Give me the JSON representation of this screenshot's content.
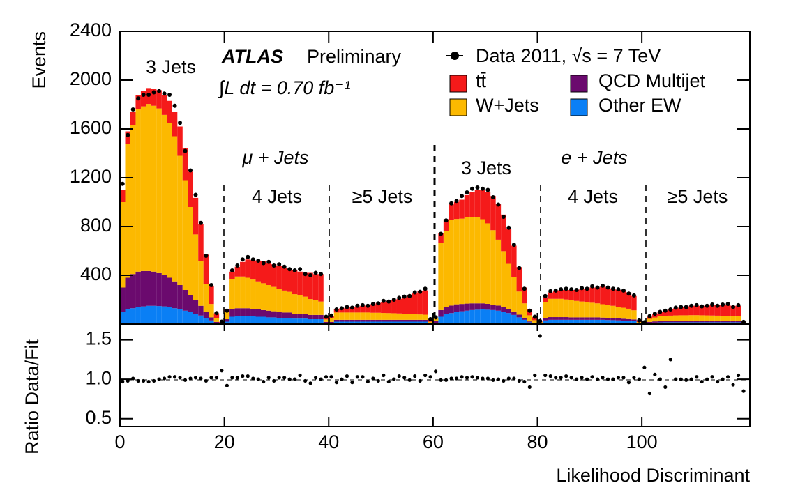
{
  "chart_data": [
    {
      "type": "stacked_histogram",
      "ylabel": "Events",
      "bins": [
        0,
        1,
        2,
        3,
        4,
        5,
        6,
        7,
        8,
        9,
        10,
        11,
        12,
        13,
        14,
        15,
        16,
        17,
        18,
        19,
        20,
        21,
        22,
        23,
        24,
        25,
        26,
        27,
        28,
        29,
        30,
        31,
        32,
        33,
        34,
        35,
        36,
        37,
        38,
        39,
        40,
        41,
        42,
        43,
        44,
        45,
        46,
        47,
        48,
        49,
        50,
        51,
        52,
        53,
        54,
        55,
        56,
        57,
        58,
        59,
        60,
        61,
        62,
        63,
        64,
        65,
        66,
        67,
        68,
        69,
        70,
        71,
        72,
        73,
        74,
        75,
        76,
        77,
        78,
        79,
        80,
        81,
        82,
        83,
        84,
        85,
        86,
        87,
        88,
        89,
        90,
        91,
        92,
        93,
        94,
        95,
        96,
        97,
        98,
        99,
        100,
        101,
        102,
        103,
        104,
        105,
        106,
        107,
        108,
        109,
        110,
        111,
        112,
        113,
        114,
        115,
        116,
        117,
        118,
        119,
        120
      ],
      "ylim": [
        0,
        2400
      ],
      "yticks": [
        400,
        800,
        1200,
        1600,
        2000,
        2400
      ],
      "annotations": [
        "3 Jets",
        "μ + Jets",
        "4 Jets",
        "≥5 Jets",
        "3 Jets",
        "e + Jets",
        "4 Jets",
        "≥5 Jets"
      ],
      "experiment": "ATLAS",
      "status": "Preliminary",
      "luminosity": "∫L dt = 0.70 fb⁻¹",
      "series": [
        {
          "name": "Other EW",
          "color": "#0a7ff5",
          "values": [
            100,
            120,
            130,
            140,
            145,
            150,
            150,
            148,
            145,
            140,
            130,
            120,
            110,
            100,
            85,
            70,
            50,
            30,
            10,
            3,
            20,
            60,
            65,
            65,
            65,
            65,
            60,
            60,
            55,
            55,
            50,
            50,
            50,
            45,
            45,
            45,
            40,
            40,
            40,
            10,
            10,
            20,
            20,
            20,
            20,
            20,
            20,
            20,
            20,
            20,
            20,
            20,
            20,
            20,
            20,
            20,
            20,
            20,
            20,
            5,
            10,
            60,
            80,
            90,
            100,
            105,
            110,
            115,
            118,
            120,
            118,
            115,
            110,
            100,
            90,
            75,
            55,
            35,
            15,
            8,
            3,
            30,
            35,
            35,
            35,
            35,
            35,
            35,
            35,
            35,
            35,
            35,
            35,
            33,
            32,
            30,
            28,
            26,
            24,
            4,
            3,
            10,
            12,
            14,
            15,
            15,
            15,
            15,
            15,
            15,
            15,
            15,
            15,
            15,
            15,
            15,
            15,
            15,
            15,
            3
          ]
        },
        {
          "name": "QCD Multijet",
          "color": "#6b0a6e",
          "values": [
            200,
            260,
            280,
            290,
            290,
            285,
            280,
            270,
            260,
            240,
            220,
            200,
            170,
            140,
            110,
            80,
            50,
            25,
            8,
            2,
            20,
            60,
            65,
            65,
            65,
            60,
            60,
            55,
            55,
            50,
            50,
            45,
            45,
            40,
            40,
            40,
            35,
            35,
            35,
            8,
            8,
            15,
            15,
            15,
            15,
            15,
            15,
            15,
            15,
            15,
            15,
            15,
            15,
            15,
            15,
            15,
            15,
            15,
            15,
            4,
            15,
            55,
            60,
            62,
            62,
            60,
            58,
            55,
            52,
            50,
            48,
            45,
            42,
            38,
            34,
            28,
            22,
            15,
            7,
            4,
            3,
            20,
            22,
            22,
            22,
            22,
            20,
            20,
            20,
            20,
            20,
            20,
            18,
            18,
            18,
            16,
            16,
            15,
            14,
            3,
            3,
            8,
            10,
            11,
            12,
            12,
            12,
            12,
            12,
            12,
            12,
            12,
            12,
            12,
            12,
            12,
            12,
            12,
            12,
            3
          ]
        },
        {
          "name": "W+Jets",
          "color": "#fcb900",
          "values": [
            700,
            1100,
            1220,
            1330,
            1350,
            1370,
            1360,
            1350,
            1310,
            1270,
            1190,
            1060,
            900,
            720,
            540,
            370,
            230,
            110,
            30,
            5,
            60,
            250,
            260,
            260,
            250,
            240,
            230,
            220,
            210,
            200,
            190,
            180,
            170,
            160,
            150,
            140,
            130,
            120,
            110,
            20,
            30,
            60,
            60,
            60,
            60,
            60,
            60,
            60,
            58,
            58,
            56,
            55,
            54,
            52,
            50,
            48,
            46,
            44,
            42,
            10,
            20,
            550,
            620,
            700,
            700,
            700,
            710,
            710,
            710,
            690,
            660,
            610,
            540,
            460,
            370,
            280,
            190,
            120,
            50,
            20,
            10,
            130,
            150,
            150,
            150,
            145,
            140,
            135,
            130,
            125,
            120,
            115,
            110,
            105,
            100,
            95,
            90,
            85,
            75,
            10,
            8,
            25,
            32,
            38,
            40,
            42,
            44,
            45,
            45,
            46,
            46,
            45,
            44,
            43,
            42,
            41,
            40,
            38,
            36,
            6
          ]
        },
        {
          "name": "tt̄",
          "color": "#f51a1a",
          "values": [
            100,
            100,
            110,
            120,
            125,
            130,
            140,
            150,
            160,
            180,
            200,
            240,
            260,
            290,
            300,
            300,
            240,
            150,
            40,
            8,
            20,
            60,
            80,
            120,
            150,
            160,
            170,
            180,
            180,
            185,
            190,
            185,
            185,
            195,
            195,
            195,
            215,
            215,
            225,
            20,
            20,
            30,
            35,
            40,
            45,
            50,
            55,
            60,
            70,
            80,
            90,
            100,
            110,
            120,
            135,
            150,
            170,
            190,
            200,
            20,
            5,
            80,
            100,
            130,
            140,
            155,
            180,
            200,
            220,
            240,
            260,
            280,
            290,
            300,
            290,
            260,
            200,
            130,
            50,
            25,
            4,
            40,
            53,
            63,
            73,
            78,
            85,
            90,
            105,
            110,
            125,
            130,
            147,
            144,
            140,
            139,
            136,
            134,
            117,
            13,
            6,
            17,
            26,
            37,
            43,
            51,
            59,
            68,
            68,
            77,
            77,
            78,
            79,
            85,
            86,
            92,
            93,
            85,
            87,
            8
          ]
        }
      ],
      "data": {
        "name": "Data 2011, √s = 7 TeV",
        "color": "#000000",
        "values": [
          1150,
          1550,
          1760,
          1850,
          1880,
          1880,
          1900,
          1910,
          1890,
          1880,
          1790,
          1650,
          1420,
          1260,
          1060,
          830,
          560,
          320,
          90,
          20,
          110,
          440,
          480,
          530,
          550,
          530,
          520,
          500,
          510,
          480,
          490,
          470,
          450,
          440,
          450,
          410,
          400,
          420,
          410,
          60,
          70,
          120,
          130,
          140,
          135,
          150,
          155,
          150,
          165,
          170,
          190,
          185,
          200,
          215,
          225,
          230,
          260,
          265,
          290,
          40,
          55,
          740,
          850,
          990,
          1010,
          1050,
          1080,
          1110,
          1120,
          1110,
          1100,
          1040,
          980,
          880,
          790,
          650,
          460,
          290,
          110,
          60,
          25,
          230,
          270,
          275,
          285,
          290,
          285,
          280,
          295,
          290,
          310,
          300,
          315,
          300,
          290,
          285,
          275,
          250,
          235,
          30,
          15,
          65,
          85,
          100,
          110,
          120,
          135,
          140,
          140,
          150,
          155,
          145,
          150,
          160,
          150,
          160,
          165,
          140,
          155,
          18
        ]
      }
    },
    {
      "type": "ratio",
      "ylabel": "Ratio Data/Fit",
      "xlabel": "Likelihood Discriminant",
      "xlim": [
        0,
        120.7
      ],
      "xticks": [
        0,
        20,
        40,
        60,
        80,
        100
      ],
      "ylim": [
        0.4,
        1.7
      ],
      "yticks": [
        0.5,
        {
          "value": 1,
          "label": "1.0"
        },
        1.5
      ],
      "color": "#000000",
      "values": [
        0.97,
        0.98,
        1.01,
        0.98,
        0.98,
        0.97,
        0.98,
        1.0,
        1.01,
        1.03,
        1.03,
        1.02,
        0.99,
        1.01,
        1.02,
        1.01,
        0.98,
        1.02,
        1.02,
        1.11,
        0.92,
        1.02,
        1.02,
        1.04,
        1.04,
        1.01,
        1.0,
        0.97,
        1.02,
        0.98,
        1.02,
        1.02,
        1.0,
        1.0,
        1.05,
        0.98,
        0.95,
        1.02,
        1.0,
        1.03,
        1.03,
        0.96,
        1.0,
        1.04,
        0.96,
        1.03,
        1.03,
        0.97,
        1.01,
        0.98,
        1.05,
        0.97,
        1.0,
        1.04,
        1.02,
        0.99,
        1.04,
        0.98,
        1.05,
        1.03,
        1.1,
        0.99,
        0.99,
        1.01,
        1.01,
        1.03,
        1.02,
        1.03,
        1.02,
        1.01,
        1.01,
        0.99,
        1.0,
        0.98,
        1.01,
        1.01,
        0.98,
        0.97,
        0.9,
        1.05,
        1.55,
        1.05,
        1.04,
        1.02,
        1.02,
        1.04,
        1.02,
        1.0,
        1.02,
        1.0,
        1.03,
        1.0,
        1.02,
        1.0,
        1.0,
        1.02,
        1.02,
        0.96,
        1.02,
        1.0,
        1.15,
        0.82,
        1.06,
        1.0,
        0.9,
        1.25,
        1.0,
        1.0,
        0.99,
        1.0,
        1.03,
        0.97,
        1.0,
        1.03,
        0.97,
        1.0,
        1.03,
        0.93,
        1.05,
        0.85
      ]
    }
  ]
}
